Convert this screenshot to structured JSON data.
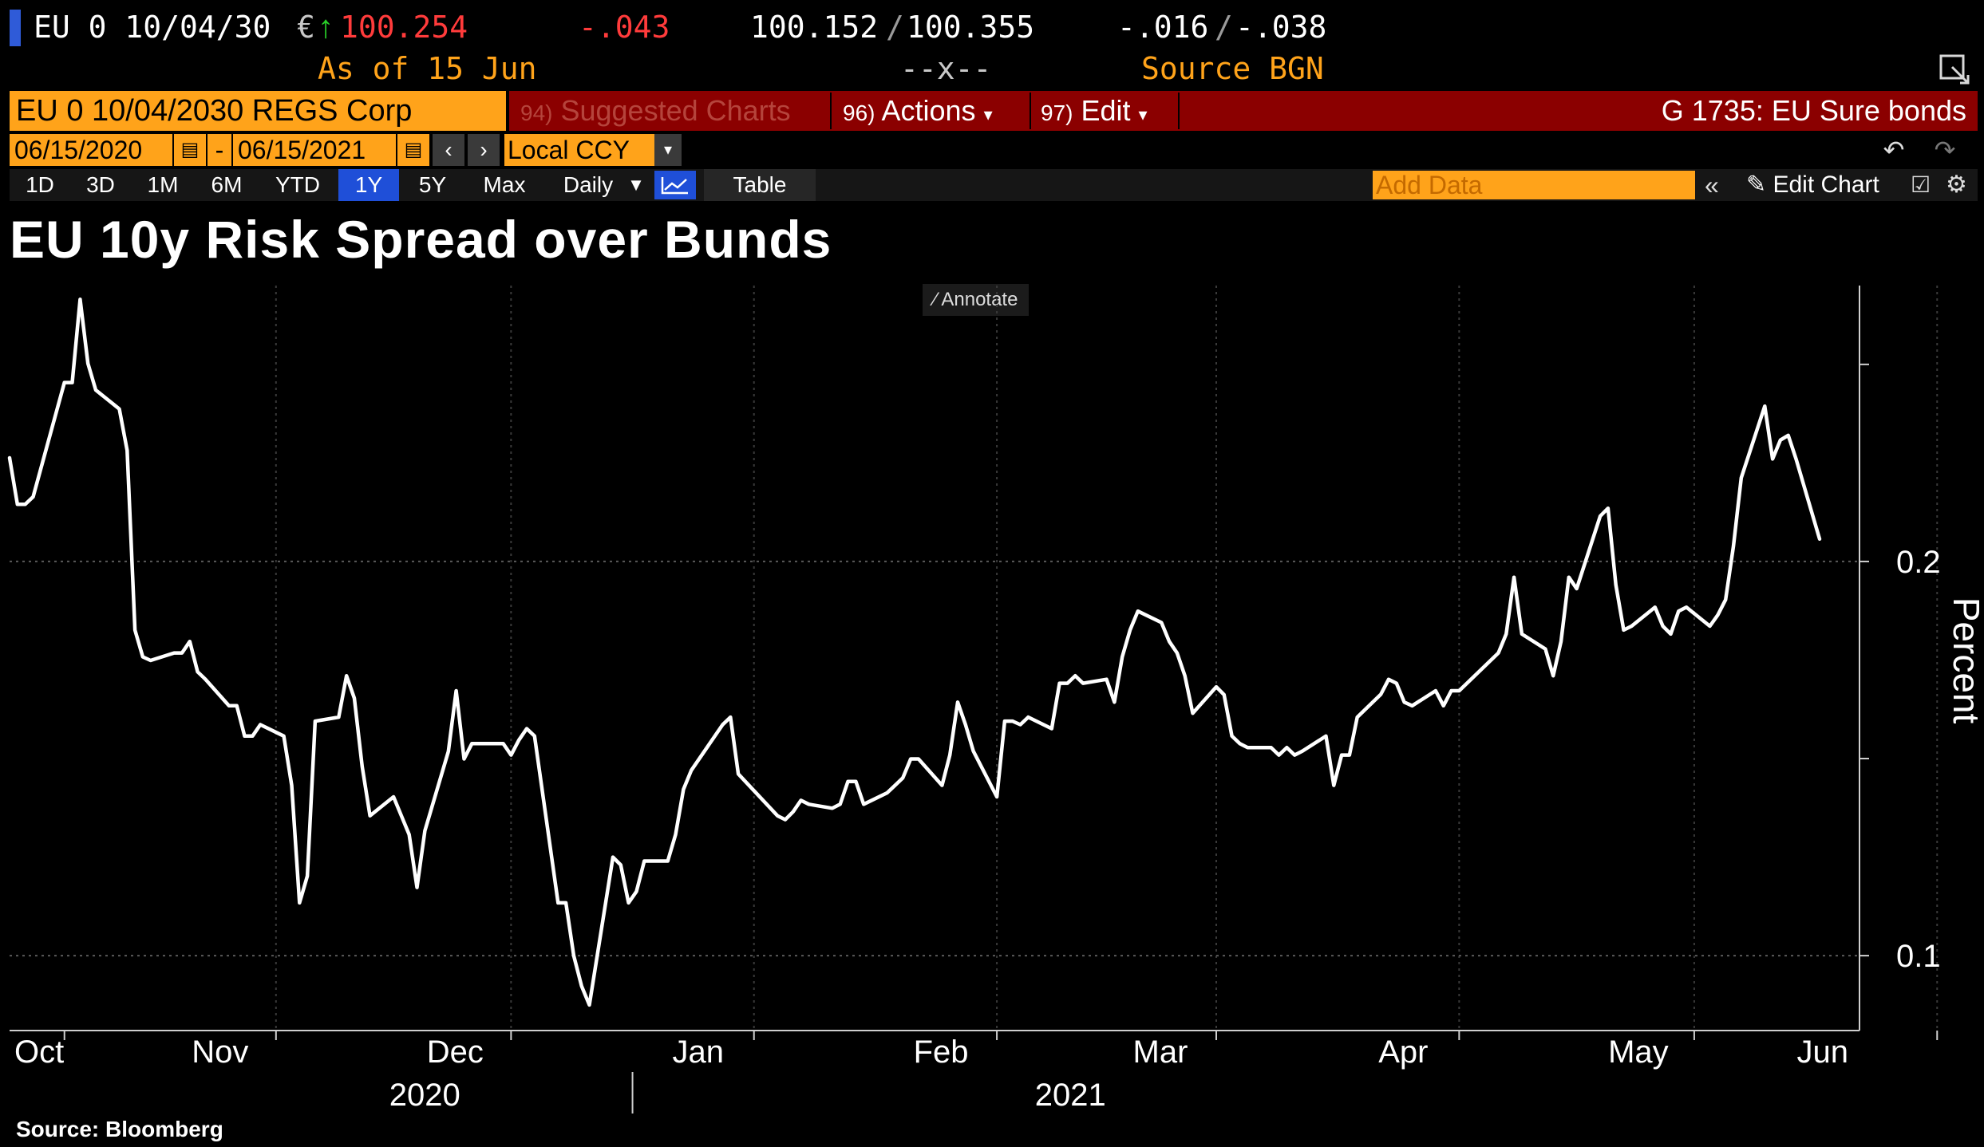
{
  "quote": {
    "ticker": "EU 0 10/04/30",
    "currency": "€",
    "price": "100.254",
    "change": "-.043",
    "bid": "100.152",
    "ask": "100.355",
    "sep": "/",
    "chg1": "-.016",
    "chg2": "-.038",
    "as_of": "As of 15 Jun",
    "mid_marker": "--x--",
    "source": "Source BGN"
  },
  "toolbar": {
    "security": "EU 0 10/04/2030 REGS Corp",
    "suggested_num": "94)",
    "suggested": "Suggested Charts",
    "actions_num": "96)",
    "actions": "Actions",
    "edit_num": "97)",
    "edit": "Edit",
    "group": "G 1735: EU Sure bonds",
    "date_from": "06/15/2020",
    "date_to": "06/15/2021",
    "dash": "-",
    "ccy": "Local CCY",
    "periods": [
      "1D",
      "3D",
      "1M",
      "6M",
      "YTD",
      "1Y",
      "5Y",
      "Max"
    ],
    "selected_period": "1Y",
    "frequency": "Daily",
    "table": "Table",
    "add_data_placeholder": "Add Data",
    "edit_chart": "Edit Chart",
    "annotate": "Annotate"
  },
  "footer": {
    "source": "Source: Bloomberg"
  },
  "chart_data": {
    "type": "line",
    "title": "EU 10y Risk Spread over Bunds",
    "ylabel": "Percent",
    "ylim": [
      0.081,
      0.27
    ],
    "yticks": [
      0.1,
      0.2
    ],
    "ytick_labels": [
      "0.1",
      "0.2"
    ],
    "grid": true,
    "months": [
      "Oct",
      "Nov",
      "Dec",
      "Jan",
      "Feb",
      "Mar",
      "Apr",
      "May",
      "Jun"
    ],
    "month_x": [
      "2020-10-05",
      "2020-11-01",
      "2020-12-01",
      "2021-01-01",
      "2021-02-01",
      "2021-03-01",
      "2021-04-01",
      "2021-05-01",
      "2021-06-01"
    ],
    "years": [
      "2020",
      "2021"
    ],
    "series": [
      {
        "points": [
          [
            "2020-09-28",
            0.2263
          ],
          [
            "2020-09-29",
            0.2145
          ],
          [
            "2020-09-30",
            0.2145
          ],
          [
            "2020-10-01",
            0.2164
          ],
          [
            "2020-10-05",
            0.2454
          ],
          [
            "2020-10-06",
            0.2454
          ],
          [
            "2020-10-07",
            0.2665
          ],
          [
            "2020-10-08",
            0.2502
          ],
          [
            "2020-10-09",
            0.2435
          ],
          [
            "2020-10-12",
            0.2387
          ],
          [
            "2020-10-13",
            0.2282
          ],
          [
            "2020-10-14",
            0.1826
          ],
          [
            "2020-10-15",
            0.1758
          ],
          [
            "2020-10-16",
            0.1749
          ],
          [
            "2020-10-19",
            0.1768
          ],
          [
            "2020-10-20",
            0.1768
          ],
          [
            "2020-10-21",
            0.1797
          ],
          [
            "2020-10-22",
            0.172
          ],
          [
            "2020-10-23",
            0.1701
          ],
          [
            "2020-10-26",
            0.1634
          ],
          [
            "2020-10-27",
            0.1634
          ],
          [
            "2020-10-28",
            0.1557
          ],
          [
            "2020-10-29",
            0.1557
          ],
          [
            "2020-10-30",
            0.1586
          ],
          [
            "2020-11-02",
            0.1557
          ],
          [
            "2020-11-03",
            0.1432
          ],
          [
            "2020-11-04",
            0.1134
          ],
          [
            "2020-11-05",
            0.1202
          ],
          [
            "2020-11-06",
            0.1595
          ],
          [
            "2020-11-09",
            0.1605
          ],
          [
            "2020-11-10",
            0.171
          ],
          [
            "2020-11-11",
            0.1653
          ],
          [
            "2020-11-12",
            0.148
          ],
          [
            "2020-11-13",
            0.1355
          ],
          [
            "2020-11-16",
            0.1403
          ],
          [
            "2020-11-17",
            0.1355
          ],
          [
            "2020-11-18",
            0.1307
          ],
          [
            "2020-11-19",
            0.1173
          ],
          [
            "2020-11-20",
            0.1317
          ],
          [
            "2020-11-23",
            0.1518
          ],
          [
            "2020-11-24",
            0.1672
          ],
          [
            "2020-11-25",
            0.1499
          ],
          [
            "2020-11-26",
            0.1538
          ],
          [
            "2020-11-27",
            0.1538
          ],
          [
            "2020-11-30",
            0.1538
          ],
          [
            "2020-12-01",
            0.1509
          ],
          [
            "2020-12-02",
            0.1547
          ],
          [
            "2020-12-03",
            0.1576
          ],
          [
            "2020-12-04",
            0.1557
          ],
          [
            "2020-12-07",
            0.1134
          ],
          [
            "2020-12-08",
            0.1134
          ],
          [
            "2020-12-09",
            0.1
          ],
          [
            "2020-12-10",
            0.0923
          ],
          [
            "2020-12-11",
            0.0875
          ],
          [
            "2020-12-14",
            0.125
          ],
          [
            "2020-12-15",
            0.123
          ],
          [
            "2020-12-16",
            0.1134
          ],
          [
            "2020-12-17",
            0.1163
          ],
          [
            "2020-12-18",
            0.124
          ],
          [
            "2020-12-21",
            0.124
          ],
          [
            "2020-12-22",
            0.1307
          ],
          [
            "2020-12-23",
            0.1422
          ],
          [
            "2020-12-24",
            0.147
          ],
          [
            "2020-12-28",
            0.1586
          ],
          [
            "2020-12-29",
            0.1605
          ],
          [
            "2020-12-30",
            0.1461
          ],
          [
            "2021-01-04",
            0.1355
          ],
          [
            "2021-01-05",
            0.1345
          ],
          [
            "2021-01-06",
            0.1365
          ],
          [
            "2021-01-07",
            0.1394
          ],
          [
            "2021-01-08",
            0.1384
          ],
          [
            "2021-01-11",
            0.1374
          ],
          [
            "2021-01-12",
            0.1384
          ],
          [
            "2021-01-13",
            0.1442
          ],
          [
            "2021-01-14",
            0.1442
          ],
          [
            "2021-01-15",
            0.1384
          ],
          [
            "2021-01-18",
            0.1413
          ],
          [
            "2021-01-19",
            0.1432
          ],
          [
            "2021-01-20",
            0.1451
          ],
          [
            "2021-01-21",
            0.1499
          ],
          [
            "2021-01-22",
            0.1499
          ],
          [
            "2021-01-25",
            0.1432
          ],
          [
            "2021-01-26",
            0.1509
          ],
          [
            "2021-01-27",
            0.1643
          ],
          [
            "2021-01-28",
            0.1586
          ],
          [
            "2021-01-29",
            0.1519
          ],
          [
            "2021-02-01",
            0.1403
          ],
          [
            "2021-02-02",
            0.1595
          ],
          [
            "2021-02-03",
            0.1595
          ],
          [
            "2021-02-04",
            0.1586
          ],
          [
            "2021-02-05",
            0.1605
          ],
          [
            "2021-02-08",
            0.1576
          ],
          [
            "2021-02-09",
            0.1691
          ],
          [
            "2021-02-10",
            0.1691
          ],
          [
            "2021-02-11",
            0.171
          ],
          [
            "2021-02-12",
            0.1691
          ],
          [
            "2021-02-15",
            0.1701
          ],
          [
            "2021-02-16",
            0.1643
          ],
          [
            "2021-02-17",
            0.1758
          ],
          [
            "2021-02-18",
            0.1826
          ],
          [
            "2021-02-19",
            0.1874
          ],
          [
            "2021-02-22",
            0.1845
          ],
          [
            "2021-02-23",
            0.1797
          ],
          [
            "2021-02-24",
            0.1768
          ],
          [
            "2021-02-25",
            0.171
          ],
          [
            "2021-02-26",
            0.1615
          ],
          [
            "2021-03-01",
            0.1682
          ],
          [
            "2021-03-02",
            0.1662
          ],
          [
            "2021-03-03",
            0.1557
          ],
          [
            "2021-03-04",
            0.1538
          ],
          [
            "2021-03-05",
            0.1528
          ],
          [
            "2021-03-08",
            0.1528
          ],
          [
            "2021-03-09",
            0.1509
          ],
          [
            "2021-03-10",
            0.1528
          ],
          [
            "2021-03-11",
            0.1509
          ],
          [
            "2021-03-12",
            0.1519
          ],
          [
            "2021-03-15",
            0.1557
          ],
          [
            "2021-03-16",
            0.1432
          ],
          [
            "2021-03-17",
            0.1509
          ],
          [
            "2021-03-18",
            0.1509
          ],
          [
            "2021-03-19",
            0.1605
          ],
          [
            "2021-03-22",
            0.1663
          ],
          [
            "2021-03-23",
            0.1701
          ],
          [
            "2021-03-24",
            0.1691
          ],
          [
            "2021-03-25",
            0.1643
          ],
          [
            "2021-03-26",
            0.1634
          ],
          [
            "2021-03-29",
            0.1672
          ],
          [
            "2021-03-30",
            0.1634
          ],
          [
            "2021-03-31",
            0.1672
          ],
          [
            "2021-04-01",
            0.1672
          ],
          [
            "2021-04-06",
            0.1768
          ],
          [
            "2021-04-07",
            0.1816
          ],
          [
            "2021-04-08",
            0.196
          ],
          [
            "2021-04-09",
            0.1816
          ],
          [
            "2021-04-12",
            0.1778
          ],
          [
            "2021-04-13",
            0.171
          ],
          [
            "2021-04-14",
            0.1797
          ],
          [
            "2021-04-15",
            0.196
          ],
          [
            "2021-04-16",
            0.1931
          ],
          [
            "2021-04-19",
            0.2115
          ],
          [
            "2021-04-20",
            0.2135
          ],
          [
            "2021-04-21",
            0.1941
          ],
          [
            "2021-04-22",
            0.1826
          ],
          [
            "2021-04-23",
            0.1836
          ],
          [
            "2021-04-26",
            0.1884
          ],
          [
            "2021-04-27",
            0.1836
          ],
          [
            "2021-04-28",
            0.1816
          ],
          [
            "2021-04-29",
            0.1874
          ],
          [
            "2021-04-30",
            0.1884
          ],
          [
            "2021-05-03",
            0.1836
          ],
          [
            "2021-05-04",
            0.1864
          ],
          [
            "2021-05-05",
            0.1903
          ],
          [
            "2021-05-06",
            0.2038
          ],
          [
            "2021-05-07",
            0.2212
          ],
          [
            "2021-05-10",
            0.2394
          ],
          [
            "2021-05-11",
            0.226
          ],
          [
            "2021-05-12",
            0.2308
          ],
          [
            "2021-05-13",
            0.232
          ],
          [
            "2021-05-14",
            0.226
          ],
          [
            "2021-05-17",
            0.2057
          ]
        ]
      }
    ]
  }
}
